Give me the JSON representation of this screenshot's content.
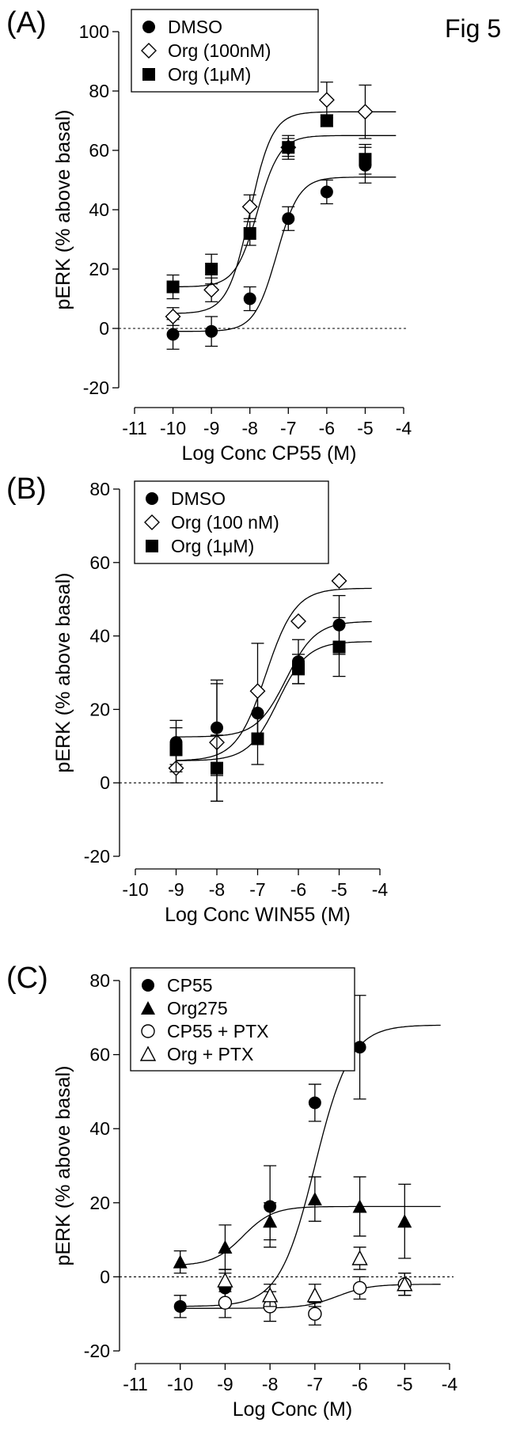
{
  "figure_label": "Fig 5",
  "chart_data": [
    {
      "panel": "(A)",
      "type": "scatter",
      "title": "",
      "xlabel": "Log Conc CP55 (M)",
      "ylabel": "pERK  (% above basal)",
      "xlim": [
        -11,
        -4
      ],
      "ylim": [
        -20,
        100
      ],
      "xticks": [
        -11,
        -10,
        -9,
        -8,
        -7,
        -6,
        -5,
        -4
      ],
      "yticks": [
        -20,
        0,
        20,
        40,
        60,
        80,
        100
      ],
      "reference_line_y": 0,
      "grid": false,
      "legend_position": "top-left",
      "series": [
        {
          "name": "DMSO",
          "marker": "circle-filled",
          "x": [
            -10,
            -9,
            -8,
            -7,
            -6,
            -5
          ],
          "y": [
            -2,
            -1,
            10,
            37,
            46,
            55
          ],
          "err": [
            5,
            5,
            4,
            4,
            4,
            6
          ],
          "fit": {
            "bottom": -1,
            "top": 51,
            "logEC50": -7.3,
            "hill": 1.5
          }
        },
        {
          "name": "Org (100nM)",
          "marker": "diamond-open",
          "x": [
            -10,
            -9,
            -8,
            -7,
            -6,
            -5
          ],
          "y": [
            4,
            13,
            41,
            61,
            77,
            73
          ],
          "err": [
            3,
            4,
            4,
            4,
            6,
            9
          ],
          "fit": {
            "bottom": 5,
            "top": 73,
            "logEC50": -8.0,
            "hill": 1.5
          }
        },
        {
          "name": "Org (1μM)",
          "marker": "square-filled",
          "x": [
            -10,
            -9,
            -8,
            -7,
            -6,
            -5
          ],
          "y": [
            14,
            20,
            32,
            61,
            70,
            57
          ],
          "err": [
            4,
            5,
            4,
            3,
            2,
            5
          ],
          "fit": {
            "bottom": 14,
            "top": 65,
            "logEC50": -7.8,
            "hill": 1.5
          }
        }
      ]
    },
    {
      "panel": "(B)",
      "type": "scatter",
      "title": "",
      "xlabel": "Log Conc WIN55 (M)",
      "ylabel": "pERK (% above basal)",
      "xlim": [
        -10,
        -4
      ],
      "ylim": [
        -20,
        80
      ],
      "xticks": [
        -10,
        -9,
        -8,
        -7,
        -6,
        -5,
        -4
      ],
      "yticks": [
        -20,
        0,
        20,
        40,
        60,
        80
      ],
      "reference_line_y": 0,
      "grid": false,
      "legend_position": "top-left",
      "series": [
        {
          "name": "DMSO",
          "marker": "circle-filled",
          "x": [
            -9,
            -8,
            -7,
            -6,
            -5
          ],
          "y": [
            11,
            15,
            19,
            33,
            43
          ],
          "err": [
            6,
            13,
            6,
            6,
            8
          ],
          "fit": {
            "bottom": 12.5,
            "top": 44,
            "logEC50": -6.3,
            "hill": 1.2
          }
        },
        {
          "name": "Org (100 nM)",
          "marker": "diamond-open",
          "x": [
            -9,
            -8,
            -7,
            -6,
            -5
          ],
          "y": [
            4,
            11,
            25,
            44,
            55
          ],
          "err": [
            4,
            16,
            13,
            0,
            0
          ],
          "fit": {
            "bottom": 6,
            "top": 53,
            "logEC50": -6.8,
            "hill": 1.2
          }
        },
        {
          "name": "Org (1μM)",
          "marker": "square-filled",
          "x": [
            -9,
            -8,
            -7,
            -6,
            -5
          ],
          "y": [
            9,
            4,
            12,
            31,
            37
          ],
          "err": [
            6,
            9,
            7,
            4,
            8
          ],
          "fit": {
            "bottom": 6,
            "top": 38.5,
            "logEC50": -6.5,
            "hill": 1.2
          }
        }
      ]
    },
    {
      "panel": "(C)",
      "type": "scatter",
      "title": "",
      "xlabel": "Log Conc (M)",
      "ylabel": "pERK (% above basal)",
      "xlim": [
        -11,
        -4
      ],
      "ylim": [
        -20,
        80
      ],
      "xticks": [
        -11,
        -10,
        -9,
        -8,
        -7,
        -6,
        -5,
        -4
      ],
      "yticks": [
        -20,
        0,
        20,
        40,
        60,
        80
      ],
      "reference_line_y": 0,
      "grid": false,
      "legend_position": "top-left",
      "series": [
        {
          "name": "CP55",
          "marker": "circle-filled",
          "x": [
            -10,
            -9,
            -8,
            -7,
            -6
          ],
          "y": [
            -8,
            -3,
            19,
            47,
            62
          ],
          "err": [
            3,
            4,
            11,
            5,
            14
          ],
          "fit": {
            "bottom": -8,
            "top": 68,
            "logEC50": -7.0,
            "hill": 1.1
          }
        },
        {
          "name": "Org275",
          "marker": "triangle-filled",
          "x": [
            -10,
            -9,
            -8,
            -7,
            -6,
            -5
          ],
          "y": [
            4,
            8,
            15,
            21,
            19,
            15
          ],
          "err": [
            3,
            6,
            5,
            6,
            8,
            10
          ],
          "fit": {
            "bottom": 3,
            "top": 19,
            "logEC50": -8.6,
            "hill": 1.3
          }
        },
        {
          "name": "CP55 + PTX",
          "marker": "circle-open",
          "x": [
            -9,
            -8,
            -7,
            -6,
            -5
          ],
          "y": [
            -7,
            -8,
            -10,
            -3,
            -2
          ],
          "err": [
            4,
            4,
            3,
            3,
            3
          ],
          "fit": {
            "bottom": -8.5,
            "top": -2,
            "logEC50": -6.5,
            "hill": 1.2
          }
        },
        {
          "name": "Org + PTX",
          "marker": "triangle-open",
          "x": [
            -9,
            -8,
            -7,
            -6,
            -5
          ],
          "y": [
            -1,
            -5,
            -5,
            5,
            -2
          ],
          "err": [
            3,
            3,
            3,
            3,
            3
          ],
          "fit": null
        }
      ]
    }
  ]
}
